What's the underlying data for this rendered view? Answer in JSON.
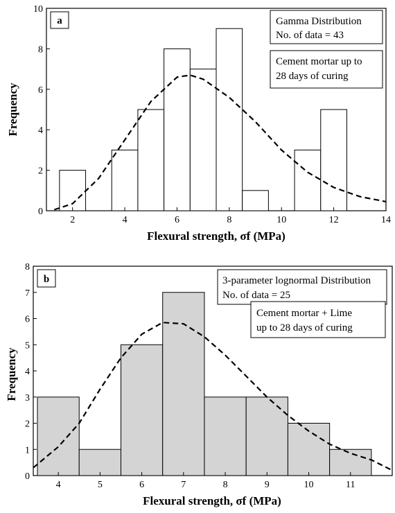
{
  "chart_data": [
    {
      "type": "bar",
      "panel_label": "a",
      "xlabel": "Flexural strength, σf (MPa)",
      "ylabel": "Frequency",
      "xlim": [
        1,
        14
      ],
      "ylim": [
        0,
        10
      ],
      "xticks": [
        2,
        4,
        6,
        8,
        10,
        12,
        14
      ],
      "yticks": [
        0,
        2,
        4,
        6,
        8,
        10
      ],
      "bar_fill": "#ffffff",
      "bins": [
        {
          "x0": 1.5,
          "x1": 2.5,
          "value": 2
        },
        {
          "x0": 3.5,
          "x1": 4.5,
          "value": 3
        },
        {
          "x0": 4.5,
          "x1": 5.5,
          "value": 5
        },
        {
          "x0": 5.5,
          "x1": 6.5,
          "value": 8
        },
        {
          "x0": 6.5,
          "x1": 7.5,
          "value": 7
        },
        {
          "x0": 7.5,
          "x1": 8.5,
          "value": 9
        },
        {
          "x0": 8.5,
          "x1": 9.5,
          "value": 1
        },
        {
          "x0": 10.5,
          "x1": 11.5,
          "value": 3
        },
        {
          "x0": 11.5,
          "x1": 12.5,
          "value": 5
        }
      ],
      "fit_curve": {
        "style": "dashed",
        "points": [
          [
            1.3,
            0.05
          ],
          [
            2,
            0.35
          ],
          [
            3,
            1.6
          ],
          [
            4,
            3.5
          ],
          [
            5,
            5.4
          ],
          [
            6,
            6.6
          ],
          [
            6.5,
            6.7
          ],
          [
            7,
            6.5
          ],
          [
            8,
            5.6
          ],
          [
            9,
            4.4
          ],
          [
            10,
            3.0
          ],
          [
            11,
            1.9
          ],
          [
            12,
            1.15
          ],
          [
            13,
            0.7
          ],
          [
            14,
            0.45
          ]
        ]
      },
      "legend_lines": [
        "Gamma Distribution",
        "No. of data = 43"
      ],
      "annotation_lines": [
        "Cement mortar up to",
        "28 days of curing"
      ]
    },
    {
      "type": "bar",
      "panel_label": "b",
      "xlabel": "Flexural strength, σf (MPa)",
      "ylabel": "Frequency",
      "xlim": [
        3.4,
        12.0
      ],
      "ylim": [
        0,
        8
      ],
      "xticks": [
        4,
        5,
        6,
        7,
        8,
        9,
        10,
        11
      ],
      "yticks": [
        0,
        1,
        2,
        3,
        4,
        5,
        6,
        7,
        8
      ],
      "bar_fill": "#d4d4d4",
      "bins": [
        {
          "x0": 3.5,
          "x1": 4.5,
          "value": 3
        },
        {
          "x0": 4.5,
          "x1": 5.5,
          "value": 1
        },
        {
          "x0": 5.5,
          "x1": 6.5,
          "value": 5
        },
        {
          "x0": 6.5,
          "x1": 7.5,
          "value": 7
        },
        {
          "x0": 7.5,
          "x1": 8.5,
          "value": 3
        },
        {
          "x0": 8.5,
          "x1": 9.5,
          "value": 3
        },
        {
          "x0": 9.5,
          "x1": 10.5,
          "value": 2
        },
        {
          "x0": 10.5,
          "x1": 11.5,
          "value": 1
        }
      ],
      "fit_curve": {
        "style": "dashed",
        "points": [
          [
            3.4,
            0.3
          ],
          [
            4,
            1.1
          ],
          [
            4.5,
            2.0
          ],
          [
            5,
            3.3
          ],
          [
            5.5,
            4.5
          ],
          [
            6,
            5.4
          ],
          [
            6.5,
            5.85
          ],
          [
            7,
            5.8
          ],
          [
            7.5,
            5.3
          ],
          [
            8,
            4.6
          ],
          [
            8.5,
            3.8
          ],
          [
            9,
            3.0
          ],
          [
            9.5,
            2.3
          ],
          [
            10,
            1.7
          ],
          [
            10.5,
            1.2
          ],
          [
            11,
            0.85
          ],
          [
            11.5,
            0.6
          ],
          [
            12,
            0.2
          ]
        ]
      },
      "legend_lines": [
        "3-parameter lognormal Distribution",
        "No. of data = 25"
      ],
      "annotation_lines": [
        "Cement mortar + Lime",
        "up to 28 days of curing"
      ]
    }
  ]
}
